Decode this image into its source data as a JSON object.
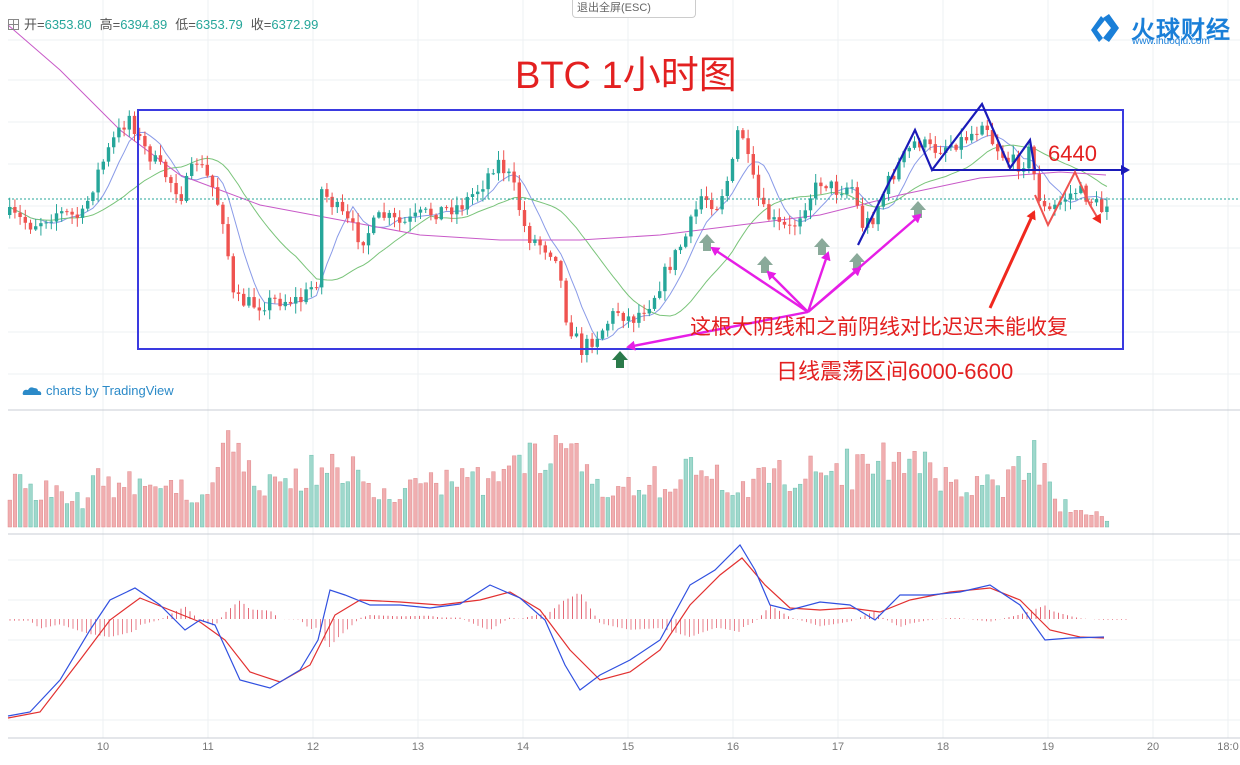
{
  "toolbar": {
    "open_label": "开=",
    "open": "6353.80",
    "high_label": "高=",
    "high": "6394.89",
    "low_label": "低=",
    "low": "6353.79",
    "close_label": "收=",
    "close": "6372.99",
    "exit_fullscreen": "退出全屏(ESC)"
  },
  "brand": {
    "name": "火球财经",
    "url": "www.ihuoqiu.com"
  },
  "watermark": "charts by TradingView",
  "chart_data": {
    "type": "candlestick",
    "title": "BTC 1小时图",
    "x_ticks": [
      "10",
      "11",
      "12",
      "13",
      "14",
      "15",
      "16",
      "17",
      "18",
      "19",
      "20",
      "18:0"
    ],
    "range_box": {
      "low": 6000,
      "high": 6600
    },
    "annotations": {
      "level": "6440",
      "note": "这根大阴线和之前阴线对比迟迟未能收复",
      "range": "日线震荡区间6000-6600"
    },
    "colors": {
      "up": "#26a69a",
      "down": "#ef5350",
      "box": "#3a3ae0",
      "arrow_pink": "#e61ee6",
      "arrow_red": "#f0281e",
      "trend_blue": "#1a1ab8"
    },
    "panels": [
      "price",
      "volume",
      "macd"
    ]
  }
}
